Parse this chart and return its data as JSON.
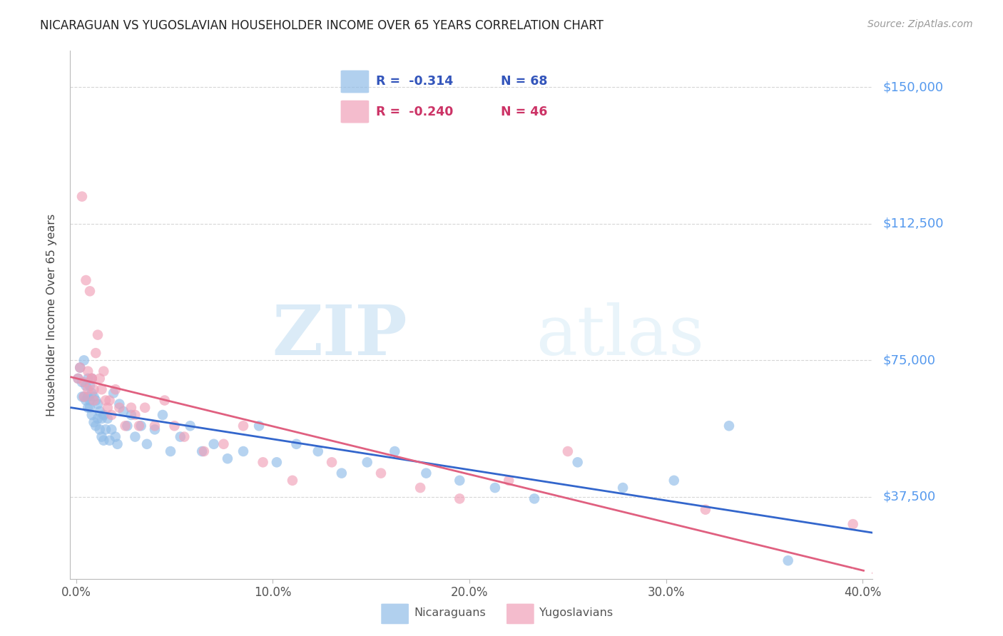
{
  "title": "NICARAGUAN VS YUGOSLAVIAN HOUSEHOLDER INCOME OVER 65 YEARS CORRELATION CHART",
  "source": "Source: ZipAtlas.com",
  "ylabel": "Householder Income Over 65 years",
  "xlabel_ticks": [
    "0.0%",
    "10.0%",
    "20.0%",
    "30.0%",
    "40.0%"
  ],
  "xlabel_values": [
    0.0,
    0.1,
    0.2,
    0.3,
    0.4
  ],
  "ytick_labels": [
    "$37,500",
    "$75,000",
    "$112,500",
    "$150,000"
  ],
  "ytick_values": [
    37500,
    75000,
    112500,
    150000
  ],
  "ylim": [
    15000,
    160000
  ],
  "xlim": [
    -0.003,
    0.405
  ],
  "background_color": "#ffffff",
  "grid_color": "#cccccc",
  "watermark_zip": "ZIP",
  "watermark_atlas": "atlas",
  "nicaraguan_color": "#90bce8",
  "yugoslavian_color": "#f0a0b8",
  "nicaraguan_line_color": "#3366cc",
  "yugoslavian_line_color": "#e06080",
  "legend_R_nicaraguan": "-0.314",
  "legend_N_nicaraguan": "68",
  "legend_R_yugoslavian": "-0.240",
  "legend_N_yugoslavian": "46",
  "nic_x": [
    0.001,
    0.002,
    0.003,
    0.003,
    0.004,
    0.004,
    0.005,
    0.005,
    0.006,
    0.006,
    0.006,
    0.007,
    0.007,
    0.007,
    0.008,
    0.008,
    0.008,
    0.009,
    0.009,
    0.01,
    0.01,
    0.011,
    0.011,
    0.012,
    0.012,
    0.013,
    0.013,
    0.014,
    0.014,
    0.015,
    0.016,
    0.017,
    0.018,
    0.019,
    0.02,
    0.021,
    0.022,
    0.024,
    0.026,
    0.028,
    0.03,
    0.033,
    0.036,
    0.04,
    0.044,
    0.048,
    0.053,
    0.058,
    0.064,
    0.07,
    0.077,
    0.085,
    0.093,
    0.102,
    0.112,
    0.123,
    0.135,
    0.148,
    0.162,
    0.178,
    0.195,
    0.213,
    0.233,
    0.255,
    0.278,
    0.304,
    0.332,
    0.362
  ],
  "nic_y": [
    70000,
    73000,
    65000,
    69000,
    75000,
    65000,
    68000,
    64000,
    70000,
    65000,
    62000,
    68000,
    64000,
    62000,
    70000,
    66000,
    60000,
    65000,
    58000,
    64000,
    57000,
    63000,
    59000,
    61000,
    56000,
    59000,
    54000,
    60000,
    53000,
    56000,
    59000,
    53000,
    56000,
    66000,
    54000,
    52000,
    63000,
    61000,
    57000,
    60000,
    54000,
    57000,
    52000,
    56000,
    60000,
    50000,
    54000,
    57000,
    50000,
    52000,
    48000,
    50000,
    57000,
    47000,
    52000,
    50000,
    44000,
    47000,
    50000,
    44000,
    42000,
    40000,
    37000,
    47000,
    40000,
    42000,
    57000,
    20000
  ],
  "yug_x": [
    0.001,
    0.002,
    0.003,
    0.004,
    0.004,
    0.005,
    0.006,
    0.006,
    0.007,
    0.008,
    0.008,
    0.009,
    0.009,
    0.01,
    0.011,
    0.012,
    0.013,
    0.014,
    0.015,
    0.016,
    0.017,
    0.018,
    0.02,
    0.022,
    0.025,
    0.028,
    0.03,
    0.032,
    0.035,
    0.04,
    0.045,
    0.05,
    0.055,
    0.065,
    0.075,
    0.085,
    0.095,
    0.11,
    0.13,
    0.155,
    0.175,
    0.195,
    0.22,
    0.25,
    0.32,
    0.395
  ],
  "yug_y": [
    70000,
    73000,
    120000,
    69000,
    65000,
    97000,
    72000,
    67000,
    94000,
    70000,
    70000,
    67000,
    64000,
    77000,
    82000,
    70000,
    67000,
    72000,
    64000,
    62000,
    64000,
    60000,
    67000,
    62000,
    57000,
    62000,
    60000,
    57000,
    62000,
    57000,
    64000,
    57000,
    54000,
    50000,
    52000,
    57000,
    47000,
    42000,
    47000,
    44000,
    40000,
    37000,
    42000,
    50000,
    34000,
    30000
  ]
}
